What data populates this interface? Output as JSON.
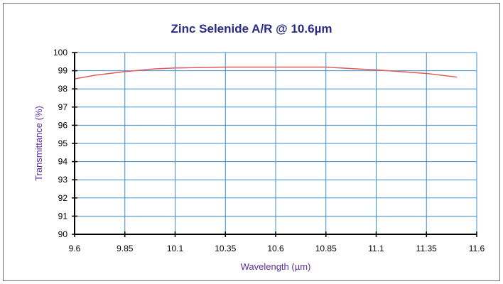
{
  "chart_data": {
    "type": "line",
    "title": "Zinc Selenide A/R @ 10.6µm",
    "xlabel": "Wavelength (µm)",
    "ylabel": "Transmittance (%)",
    "xlim": [
      9.6,
      11.6
    ],
    "ylim": [
      90,
      100
    ],
    "x_ticks": [
      9.6,
      9.85,
      10.1,
      10.35,
      10.6,
      10.85,
      11.1,
      11.35,
      11.6
    ],
    "x_tick_labels": [
      "9.6",
      "9.85",
      "10.1",
      "10.35",
      "10.6",
      "10.85",
      "11.1",
      "11.35",
      "11.6"
    ],
    "y_ticks": [
      90,
      91,
      92,
      93,
      94,
      95,
      96,
      97,
      98,
      99,
      100
    ],
    "y_tick_labels": [
      "90",
      "91",
      "92",
      "93",
      "94",
      "95",
      "96",
      "97",
      "98",
      "99",
      "100"
    ],
    "grid": true,
    "colors": {
      "grid": "#3a8fd0",
      "line": "#e05a5a",
      "axis": "#000000",
      "title": "#2b2a85",
      "axis_label": "#5a2fa3"
    },
    "series": [
      {
        "x": [
          9.6,
          9.7,
          9.85,
          10.0,
          10.1,
          10.35,
          10.6,
          10.85,
          11.0,
          11.1,
          11.35,
          11.5
        ],
        "y": [
          98.55,
          98.75,
          98.95,
          99.1,
          99.15,
          99.2,
          99.2,
          99.2,
          99.1,
          99.05,
          98.85,
          98.65
        ]
      }
    ]
  }
}
